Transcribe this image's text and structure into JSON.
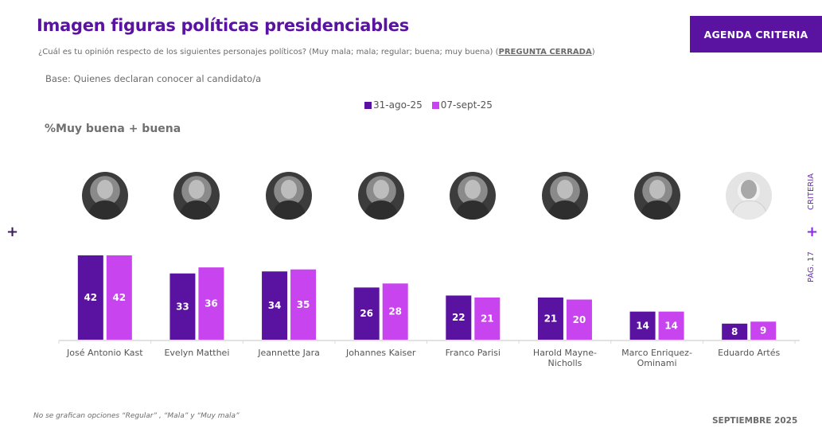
{
  "header": {
    "title": "Imagen figuras políticas presidenciables",
    "question": "¿Cuál es tu opinión respecto de los siguientes personajes políticos?  (Muy mala; mala; regular; buena; muy buena) (",
    "question_closed": "PREGUNTA CERRADA",
    "question_end": ")",
    "base": "Base: Quienes declaran conocer al candidato/a",
    "brand": "AGENDA CRITERIA"
  },
  "side": {
    "criteria": "CRITERIA",
    "page": "PÁG. 17",
    "plus": "+"
  },
  "metric_label": "%Muy buena + buena",
  "footer": {
    "note": "No se grafican opciones “Regular” , “Mala” y “Muy mala”",
    "date": "SEPTIEMBRE 2025"
  },
  "photos": [
    {
      "name": "José Antonio Kast",
      "icon": "portrait-photo",
      "tone": "dark"
    },
    {
      "name": "Evelyn Matthei",
      "icon": "portrait-photo",
      "tone": "dark"
    },
    {
      "name": "Jeannette Jara",
      "icon": "portrait-photo",
      "tone": "dark"
    },
    {
      "name": "Johannes Kaiser",
      "icon": "portrait-photo",
      "tone": "dark"
    },
    {
      "name": "Franco Parisi",
      "icon": "portrait-photo",
      "tone": "dark"
    },
    {
      "name": "Harold Mayne-Nicholls",
      "icon": "portrait-photo",
      "tone": "dark"
    },
    {
      "name": "Marco Enriquez-Ominami",
      "icon": "portrait-photo",
      "tone": "dark"
    },
    {
      "name": "Eduardo Artés",
      "icon": "portrait-photo",
      "tone": "light"
    }
  ],
  "chart_data": {
    "type": "bar",
    "title": "Imagen figuras políticas presidenciables",
    "subtitle": "%Muy buena + buena",
    "xlabel": "",
    "ylabel": "",
    "ylim": [
      0,
      45
    ],
    "grid": false,
    "legend_position": "top-center",
    "categories": [
      [
        "José Antonio Kast"
      ],
      [
        "Evelyn Matthei"
      ],
      [
        "Jeannette Jara"
      ],
      [
        "Johannes Kaiser"
      ],
      [
        "Franco Parisi"
      ],
      [
        "Harold Mayne-",
        "Nicholls"
      ],
      [
        "Marco Enriquez-",
        "Ominami"
      ],
      [
        "Eduardo Artés"
      ]
    ],
    "series": [
      {
        "name": "31-ago-25",
        "color": "#5a12a0",
        "values": [
          42,
          33,
          34,
          26,
          22,
          21,
          14,
          8
        ]
      },
      {
        "name": "07-sept-25",
        "color": "#c744ef",
        "values": [
          42,
          36,
          35,
          28,
          21,
          20,
          14,
          9
        ]
      }
    ]
  }
}
